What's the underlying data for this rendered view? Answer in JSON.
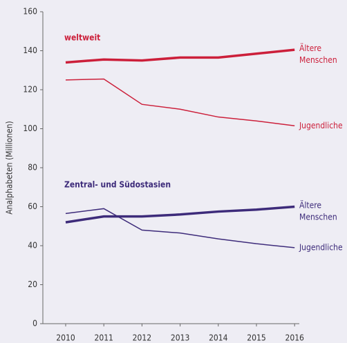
{
  "chart_data": {
    "type": "line",
    "y_label": "Analphabeten (Millionen)",
    "categories": [
      "2010",
      "2011",
      "2012",
      "2013",
      "2014",
      "2015",
      "2016"
    ],
    "groups": [
      "weltweit",
      "Zentral- und Südostasien"
    ],
    "series": [
      {
        "name": "Ältere Menschen",
        "group": "weltweit",
        "color": "#cc1f3a",
        "width": 3.5,
        "values": [
          134,
          135.5,
          135,
          136.5,
          136.5,
          138.5,
          140.5
        ]
      },
      {
        "name": "Jugendliche",
        "group": "weltweit",
        "color": "#cc1f3a",
        "width": 1.5,
        "values": [
          125,
          125.5,
          112.5,
          110,
          106,
          104,
          101.5
        ]
      },
      {
        "name": "Ältere Menschen",
        "group": "Zentral- und Südostasien",
        "color": "#3d2b7a",
        "width": 3.5,
        "values": [
          52,
          55,
          55,
          56,
          57.5,
          58.5,
          60
        ]
      },
      {
        "name": "Jugendliche",
        "group": "Zentral- und Südostasien",
        "color": "#3d2b7a",
        "width": 1.5,
        "values": [
          56.5,
          59,
          48,
          46.5,
          43.5,
          41,
          39
        ]
      }
    ],
    "ylim": [
      0,
      160
    ],
    "yticks": [
      0,
      20,
      40,
      60,
      80,
      100,
      120,
      140,
      160
    ]
  }
}
